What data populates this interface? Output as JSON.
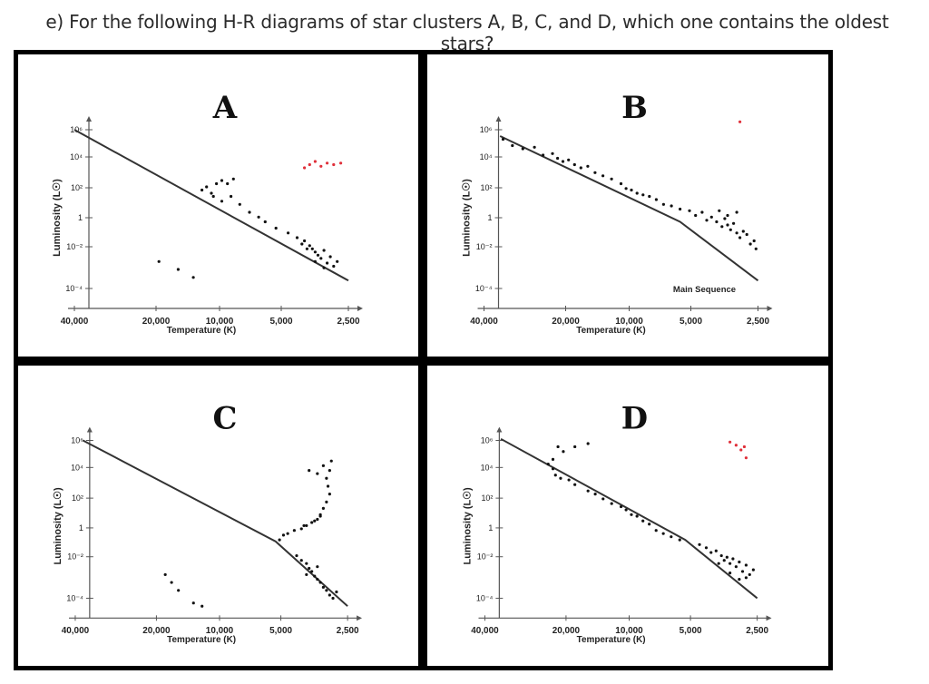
{
  "question": "e) For the following H-R diagrams of star clusters A, B, C, and D, which one contains the oldest stars?",
  "chart_data": [
    {
      "type": "scatter",
      "title": "A",
      "xlabel": "Temperature (K)",
      "ylabel": "Luminosity (L☉)",
      "x_ticks": [
        "40,000",
        "20,000",
        "10,000",
        "5,000",
        "2,500"
      ],
      "y_ticks": [
        "10⁶",
        "10⁴",
        "10²",
        "1",
        "10⁻²",
        "10⁻⁴"
      ],
      "main_sequence_line": [
        [
          40000,
          6
        ],
        [
          2500,
          -3.5
        ]
      ],
      "series": [
        {
          "name": "black-stars",
          "color": "#111111",
          "points": [
            [
              11000,
              2.2
            ],
            [
              10500,
              2.4
            ],
            [
              10000,
              2.0
            ],
            [
              9500,
              2.6
            ],
            [
              9000,
              2.8
            ],
            [
              8500,
              2.6
            ],
            [
              8000,
              2.9
            ],
            [
              9800,
              1.8
            ],
            [
              9000,
              1.5
            ],
            [
              8200,
              1.8
            ],
            [
              7500,
              1.3
            ],
            [
              6800,
              0.8
            ],
            [
              6200,
              0.5
            ],
            [
              5800,
              0.2
            ],
            [
              5200,
              -0.2
            ],
            [
              4600,
              -0.5
            ],
            [
              4200,
              -0.8
            ],
            [
              3900,
              -1.0
            ],
            [
              3700,
              -1.3
            ],
            [
              3600,
              -1.5
            ],
            [
              3500,
              -1.7
            ],
            [
              3400,
              -1.9
            ],
            [
              3300,
              -2.1
            ],
            [
              3200,
              -1.6
            ],
            [
              3100,
              -2.4
            ],
            [
              3000,
              -2.0
            ],
            [
              2900,
              -2.6
            ],
            [
              2800,
              -2.3
            ],
            [
              3800,
              -1.5
            ],
            [
              3500,
              -2.3
            ],
            [
              3200,
              -2.7
            ],
            [
              4000,
              -1.2
            ],
            [
              17000,
              -2.3
            ],
            [
              14000,
              -2.8
            ],
            [
              12000,
              -3.3
            ]
          ]
        },
        {
          "name": "red-stars",
          "color": "#e0303a",
          "points": [
            [
              3900,
              3.6
            ],
            [
              3700,
              3.8
            ],
            [
              3500,
              4.0
            ],
            [
              3300,
              3.7
            ],
            [
              3100,
              3.9
            ],
            [
              2900,
              3.8
            ],
            [
              2700,
              3.9
            ]
          ]
        }
      ]
    },
    {
      "type": "scatter",
      "title": "B",
      "xlabel": "Temperature (K)",
      "ylabel": "Luminosity (L☉)",
      "annotation": "Main Sequence",
      "x_ticks": [
        "40,000",
        "20,000",
        "10,000",
        "5,000",
        "2,500"
      ],
      "y_ticks": [
        "10⁶",
        "10⁴",
        "10²",
        "1",
        "10⁻²",
        "10⁻⁴"
      ],
      "main_sequence_line": [
        [
          34000,
          5.6
        ],
        [
          5500,
          0.2
        ],
        [
          2500,
          -3.5
        ]
      ],
      "series": [
        {
          "name": "black-stars",
          "color": "#111111",
          "points": [
            [
              33000,
              5.4
            ],
            [
              30000,
              5.0
            ],
            [
              27000,
              4.8
            ],
            [
              24000,
              4.9
            ],
            [
              22000,
              4.4
            ],
            [
              20000,
              4.5
            ],
            [
              19000,
              4.2
            ],
            [
              18000,
              4.0
            ],
            [
              17000,
              4.1
            ],
            [
              16000,
              3.8
            ],
            [
              15000,
              3.6
            ],
            [
              14000,
              3.7
            ],
            [
              13000,
              3.3
            ],
            [
              12000,
              3.1
            ],
            [
              11000,
              2.9
            ],
            [
              10000,
              2.6
            ],
            [
              9500,
              2.3
            ],
            [
              9000,
              2.2
            ],
            [
              8500,
              2.0
            ],
            [
              8000,
              1.9
            ],
            [
              7500,
              1.8
            ],
            [
              7000,
              1.6
            ],
            [
              6500,
              1.3
            ],
            [
              6000,
              1.2
            ],
            [
              5500,
              1.0
            ],
            [
              5000,
              0.9
            ],
            [
              4700,
              0.6
            ],
            [
              4400,
              0.8
            ],
            [
              4200,
              0.3
            ],
            [
              4000,
              0.5
            ],
            [
              3800,
              0.2
            ],
            [
              3600,
              -0.1
            ],
            [
              3500,
              0.4
            ],
            [
              3400,
              0.0
            ],
            [
              3300,
              -0.3
            ],
            [
              3200,
              0.1
            ],
            [
              3100,
              -0.5
            ],
            [
              3000,
              -0.8
            ],
            [
              2900,
              -0.4
            ],
            [
              2800,
              -0.6
            ],
            [
              2700,
              -1.2
            ],
            [
              2600,
              -1.0
            ],
            [
              2550,
              -1.5
            ],
            [
              3700,
              0.9
            ],
            [
              3400,
              0.6
            ],
            [
              3100,
              0.8
            ]
          ]
        },
        {
          "name": "red-stars",
          "color": "#e0303a",
          "points": [
            [
              3000,
              6.5
            ]
          ]
        }
      ]
    },
    {
      "type": "scatter",
      "title": "C",
      "xlabel": "Temperature (K)",
      "ylabel": "Luminosity (L☉)",
      "x_ticks": [
        "40,000",
        "20,000",
        "10,000",
        "5,000",
        "2,500"
      ],
      "y_ticks": [
        "10⁶",
        "10⁴",
        "10²",
        "1",
        "10⁻²",
        "10⁻⁴"
      ],
      "main_sequence_line": [
        [
          37000,
          6.0
        ],
        [
          5200,
          -0.4
        ],
        [
          2500,
          -4.5
        ]
      ],
      "series": [
        {
          "name": "black-stars",
          "color": "#111111",
          "points": [
            [
              5000,
              -0.3
            ],
            [
              4800,
              0.0
            ],
            [
              4600,
              0.1
            ],
            [
              4300,
              0.3
            ],
            [
              4000,
              0.4
            ],
            [
              3800,
              0.6
            ],
            [
              3600,
              0.8
            ],
            [
              3400,
              1.0
            ],
            [
              3300,
              1.3
            ],
            [
              3200,
              1.7
            ],
            [
              3100,
              2.1
            ],
            [
              3000,
              2.6
            ],
            [
              3050,
              3.1
            ],
            [
              3100,
              3.6
            ],
            [
              3000,
              4.1
            ],
            [
              3200,
              4.4
            ],
            [
              3400,
              3.9
            ],
            [
              3700,
              4.1
            ],
            [
              2950,
              4.7
            ],
            [
              3300,
              1.2
            ],
            [
              3500,
              0.9
            ],
            [
              3900,
              0.6
            ],
            [
              4200,
              -1.3
            ],
            [
              4000,
              -1.6
            ],
            [
              3800,
              -1.8
            ],
            [
              3700,
              -2.1
            ],
            [
              3600,
              -2.3
            ],
            [
              3500,
              -2.6
            ],
            [
              3400,
              -2.8
            ],
            [
              3300,
              -3.0
            ],
            [
              3200,
              -3.3
            ],
            [
              3100,
              -3.5
            ],
            [
              3000,
              -3.8
            ],
            [
              2900,
              -4.0
            ],
            [
              2800,
              -3.6
            ],
            [
              3800,
              -2.5
            ],
            [
              3400,
              -2.0
            ],
            [
              16000,
              -2.5
            ],
            [
              15000,
              -3.0
            ],
            [
              14000,
              -3.5
            ],
            [
              12000,
              -4.3
            ],
            [
              11000,
              -4.5
            ]
          ]
        }
      ]
    },
    {
      "type": "scatter",
      "title": "D",
      "xlabel": "Temperature (K)",
      "ylabel": "Luminosity (L☉)",
      "x_ticks": [
        "40,000",
        "20,000",
        "10,000",
        "5,000",
        "2,500"
      ],
      "y_ticks": [
        "10⁶",
        "10⁴",
        "10²",
        "1",
        "10⁻²",
        "10⁻⁴"
      ],
      "main_sequence_line": [
        [
          34000,
          6.1
        ],
        [
          5200,
          -0.3
        ],
        [
          2500,
          -4.0
        ]
      ],
      "series": [
        {
          "name": "black-stars",
          "color": "#111111",
          "points": [
            [
              19000,
              5.6
            ],
            [
              18000,
              5.3
            ],
            [
              20000,
              4.8
            ],
            [
              21000,
              4.5
            ],
            [
              20000,
              4.2
            ],
            [
              19500,
              3.8
            ],
            [
              18500,
              3.6
            ],
            [
              17000,
              3.5
            ],
            [
              16000,
              3.2
            ],
            [
              14000,
              2.8
            ],
            [
              13000,
              2.6
            ],
            [
              12000,
              2.3
            ],
            [
              11000,
              2.0
            ],
            [
              10000,
              1.8
            ],
            [
              9500,
              1.6
            ],
            [
              9000,
              1.3
            ],
            [
              8500,
              1.2
            ],
            [
              8000,
              0.9
            ],
            [
              7500,
              0.7
            ],
            [
              7000,
              0.3
            ],
            [
              6500,
              0.1
            ],
            [
              6000,
              -0.1
            ],
            [
              5500,
              -0.3
            ],
            [
              16000,
              5.6
            ],
            [
              14000,
              5.8
            ],
            [
              4500,
              -0.6
            ],
            [
              4200,
              -0.8
            ],
            [
              4000,
              -1.1
            ],
            [
              3800,
              -1.0
            ],
            [
              3600,
              -1.3
            ],
            [
              3500,
              -1.6
            ],
            [
              3400,
              -1.4
            ],
            [
              3300,
              -1.8
            ],
            [
              3200,
              -1.5
            ],
            [
              3100,
              -2.0
            ],
            [
              3000,
              -1.7
            ],
            [
              2900,
              -2.3
            ],
            [
              2800,
              -1.9
            ],
            [
              2700,
              -2.5
            ],
            [
              2600,
              -2.2
            ],
            [
              3700,
              -1.8
            ],
            [
              3300,
              -2.4
            ],
            [
              3000,
              -2.8
            ],
            [
              2800,
              -2.7
            ]
          ]
        },
        {
          "name": "red-stars",
          "color": "#e0303a",
          "points": [
            [
              3300,
              5.9
            ],
            [
              3100,
              5.7
            ],
            [
              2950,
              5.4
            ],
            [
              2850,
              5.6
            ],
            [
              2800,
              4.9
            ]
          ]
        }
      ]
    }
  ]
}
